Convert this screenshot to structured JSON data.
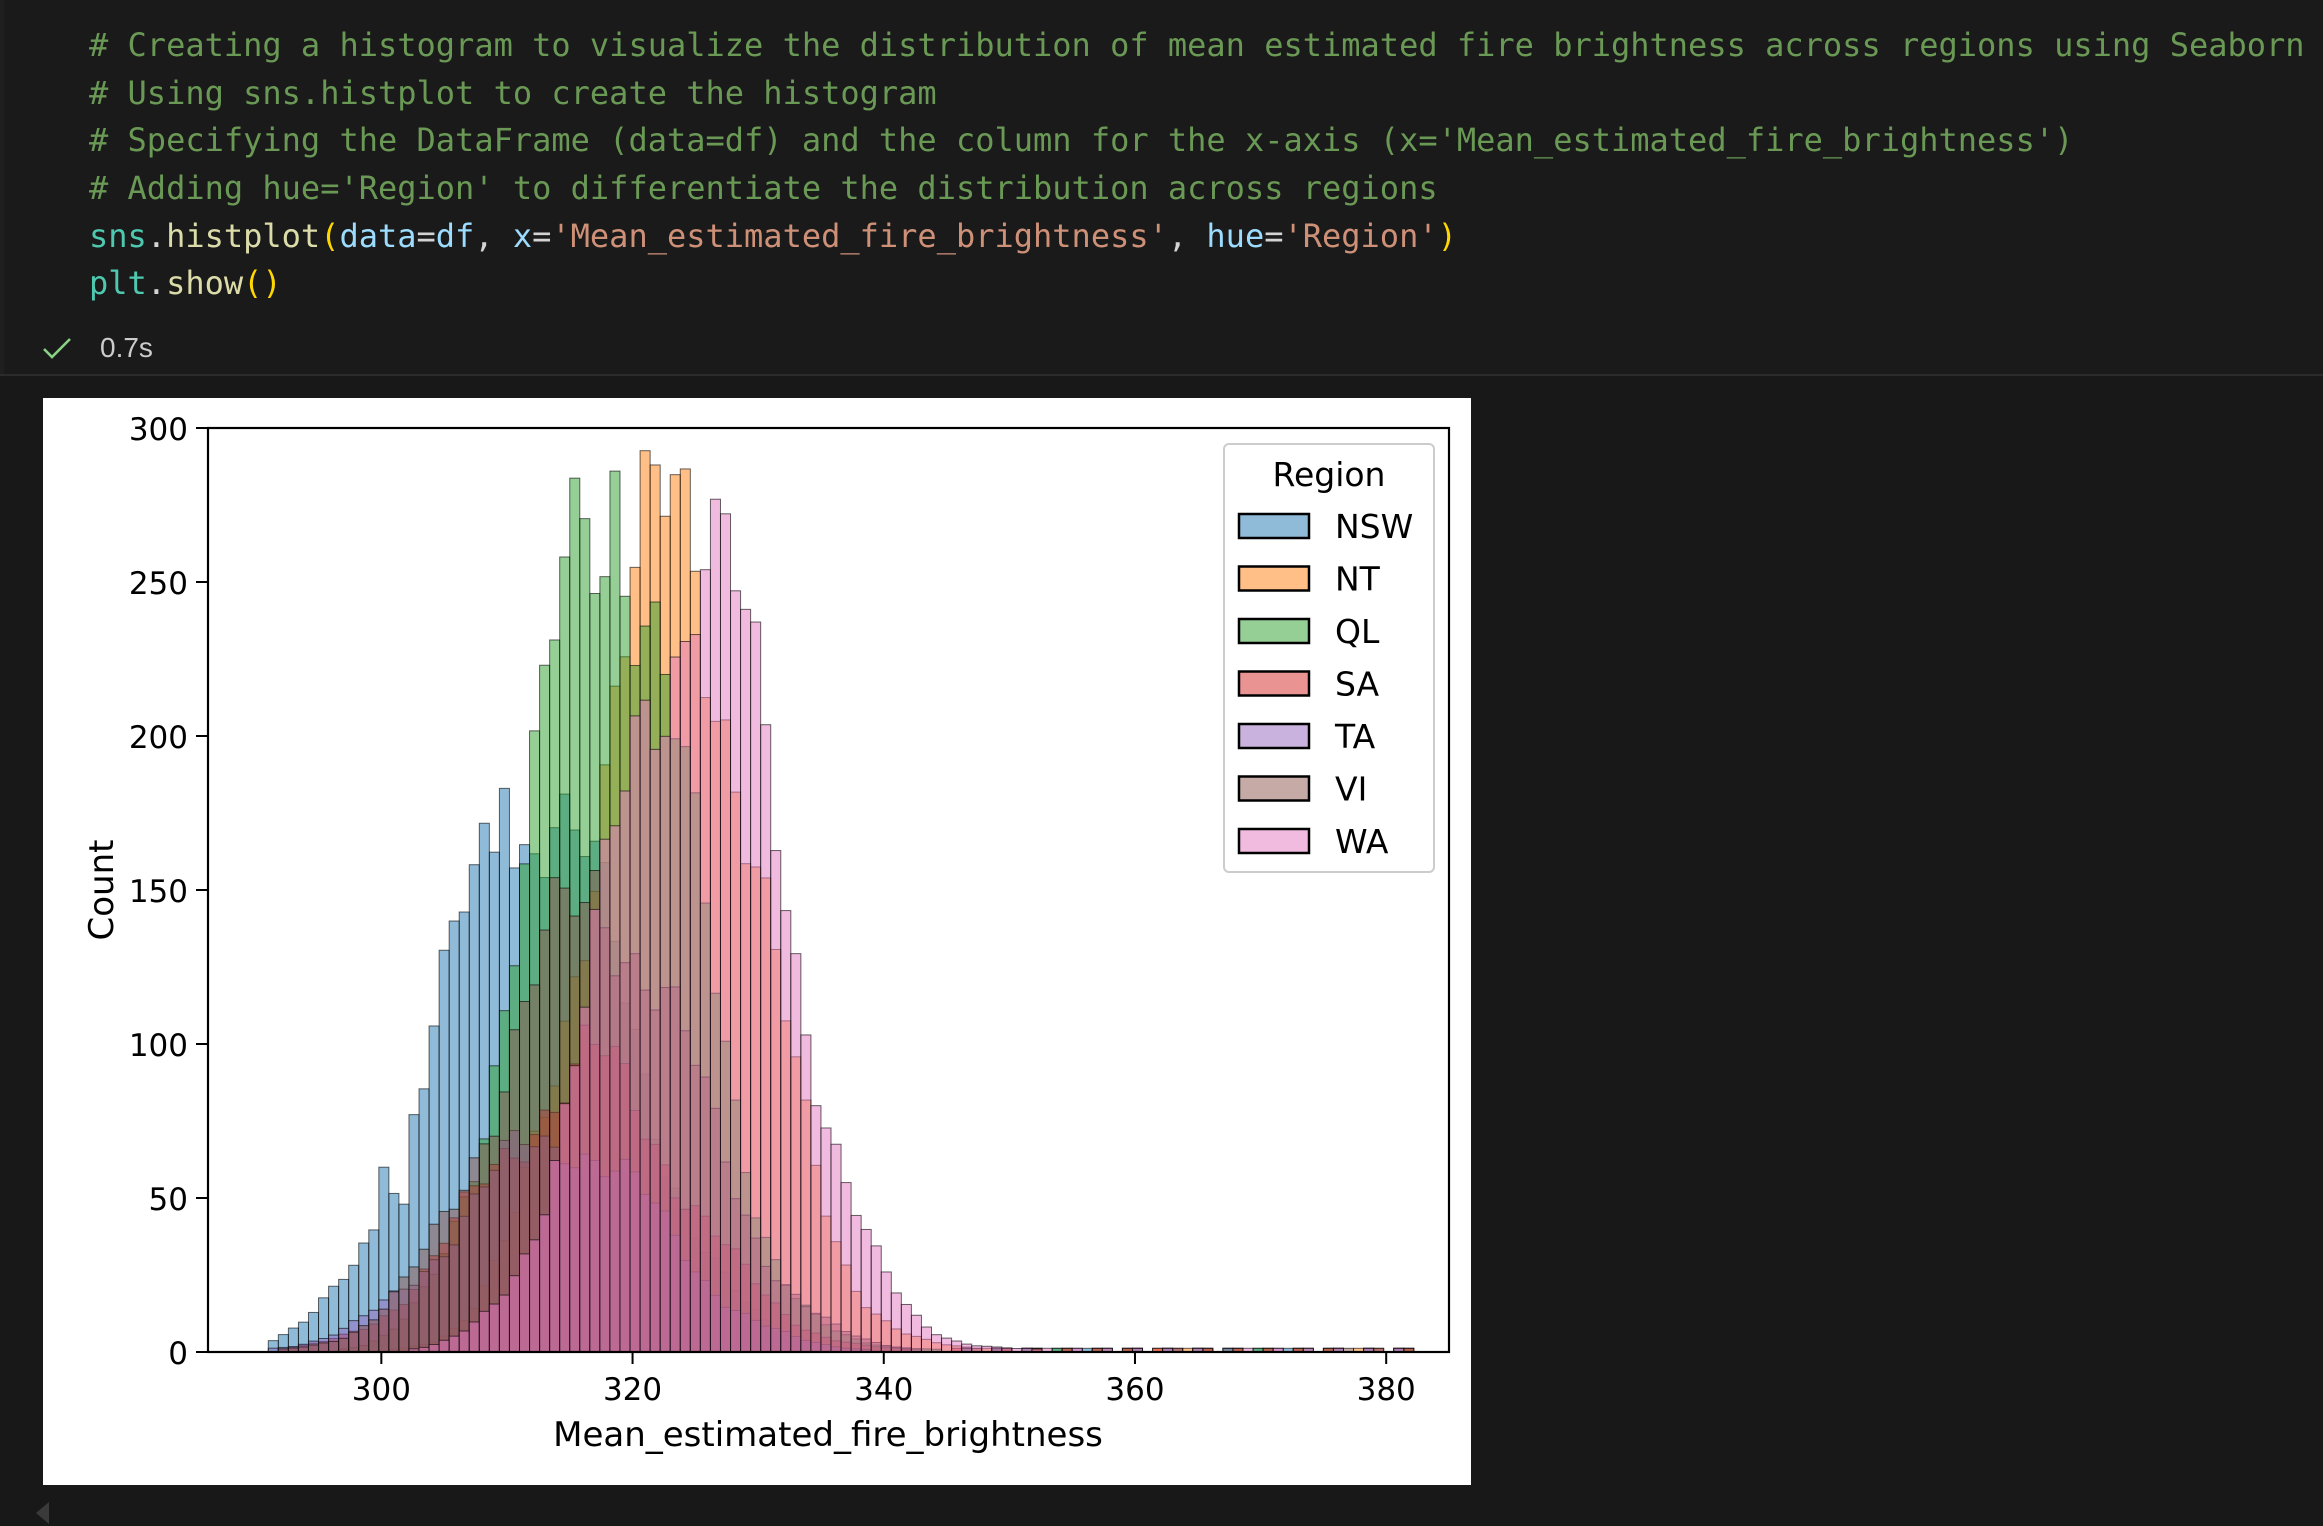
{
  "code_cell": {
    "lines": [
      [
        {
          "t": "# Creating a histogram to visualize the distribution of mean estimated fire brightness across regions using Seaborn",
          "c": "comment"
        }
      ],
      [
        {
          "t": "# Using sns.histplot to create the histogram",
          "c": "comment"
        }
      ],
      [
        {
          "t": "# Specifying the DataFrame (data=df) and the column for the x-axis (x='Mean_estimated_fire_brightness')",
          "c": "comment"
        }
      ],
      [
        {
          "t": "# Adding hue='Region' to differentiate the distribution across regions",
          "c": "comment"
        }
      ],
      [
        {
          "t": "sns",
          "c": "var"
        },
        {
          "t": ".",
          "c": "plain"
        },
        {
          "t": "histplot",
          "c": "fn"
        },
        {
          "t": "(",
          "c": "paren"
        },
        {
          "t": "data",
          "c": "param"
        },
        {
          "t": "=",
          "c": "plain"
        },
        {
          "t": "df",
          "c": "param"
        },
        {
          "t": ", ",
          "c": "plain"
        },
        {
          "t": "x",
          "c": "param"
        },
        {
          "t": "=",
          "c": "plain"
        },
        {
          "t": "'Mean_estimated_fire_brightness'",
          "c": "str"
        },
        {
          "t": ", ",
          "c": "plain"
        },
        {
          "t": "hue",
          "c": "param"
        },
        {
          "t": "=",
          "c": "plain"
        },
        {
          "t": "'Region'",
          "c": "str"
        },
        {
          "t": ")",
          "c": "paren"
        }
      ],
      [
        {
          "t": "plt",
          "c": "var"
        },
        {
          "t": ".",
          "c": "plain"
        },
        {
          "t": "show",
          "c": "fn"
        },
        {
          "t": "()",
          "c": "paren"
        }
      ]
    ],
    "status_icon": "check-icon",
    "execution_time": "0.7s",
    "colors": {
      "check": "#89d185"
    }
  },
  "chart_data": {
    "type": "bar",
    "subtype": "overlapping-histogram",
    "title": "",
    "xlabel": "Mean_estimated_fire_brightness",
    "ylabel": "Count",
    "xlim": [
      286.2,
      385.0
    ],
    "ylim": [
      0,
      300
    ],
    "x_ticks": [
      300,
      320,
      340,
      360,
      380
    ],
    "y_ticks": [
      0,
      50,
      100,
      150,
      200,
      250,
      300
    ],
    "bin_width": 0.8,
    "grid": false,
    "legend": {
      "title": "Region",
      "placement": "top-right"
    },
    "series": [
      {
        "name": "NSW",
        "color": "#1f77b4",
        "center": 312,
        "sd": 7.5,
        "peak": 175,
        "spikes": [
          [
            310,
            183
          ],
          [
            300,
            60
          ],
          [
            302,
            48
          ]
        ]
      },
      {
        "name": "NT",
        "color": "#ff7f0e",
        "center": 323,
        "sd": 6.5,
        "peak": 262,
        "spikes": [
          [
            321.6,
            288
          ]
        ]
      },
      {
        "name": "QL",
        "color": "#2ca02c",
        "center": 318,
        "sd": 6.3,
        "peak": 272,
        "spikes": [
          [
            318.4,
            286
          ]
        ]
      },
      {
        "name": "SA",
        "color": "#d62728",
        "center": 316,
        "sd": 8.0,
        "peak": 88,
        "spikes": []
      },
      {
        "name": "TA",
        "color": "#9467bd",
        "center": 314,
        "sd": 8.0,
        "peak": 68,
        "spikes": []
      },
      {
        "name": "VI",
        "color": "#8c564b",
        "center": 317,
        "sd": 7.8,
        "peak": 142,
        "spikes": []
      },
      {
        "name": "WA",
        "color": "#e377c2",
        "center": 325,
        "sd": 6.8,
        "peak": 250,
        "spikes": [
          [
            326,
            254
          ]
        ]
      }
    ]
  }
}
